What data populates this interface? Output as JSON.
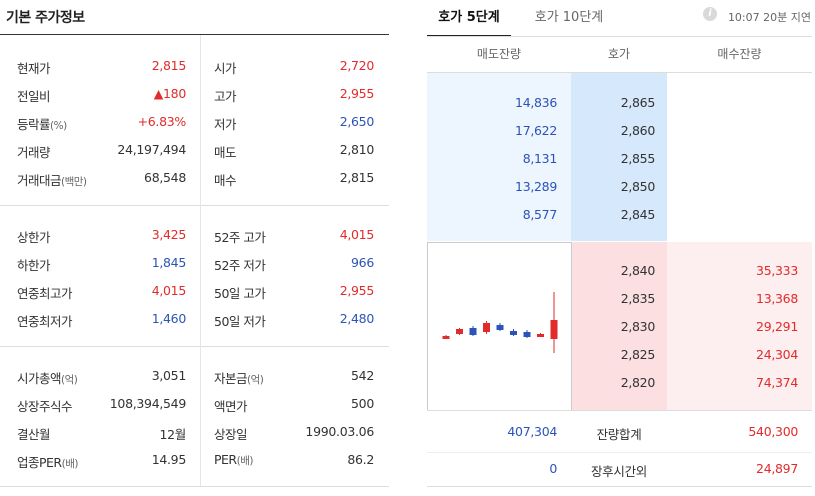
{
  "left_panel": {
    "title": "기본 주가정보",
    "rows": [
      {
        "l1": "현재가",
        "l1s": "",
        "v1": "2,815",
        "c1": "red",
        "l2": "시가",
        "l2s": "",
        "v2": "2,720",
        "c2": "red"
      },
      {
        "l1": "전일비",
        "l1s": "",
        "v1": "▲180",
        "c1": "red",
        "l2": "고가",
        "l2s": "",
        "v2": "2,955",
        "c2": "red"
      },
      {
        "l1": "등락률",
        "l1s": "(%)",
        "v1": "+6.83%",
        "c1": "red",
        "l2": "저가",
        "l2s": "",
        "v2": "2,650",
        "c2": "blue"
      },
      {
        "l1": "거래량",
        "l1s": "",
        "v1": "24,197,494",
        "c1": "blk",
        "l2": "매도",
        "l2s": "",
        "v2": "2,810",
        "c2": "blk"
      },
      {
        "l1": "거래대금",
        "l1s": "(백만)",
        "v1": "68,548",
        "c1": "blk",
        "l2": "매수",
        "l2s": "",
        "v2": "2,815",
        "c2": "blk"
      },
      {
        "l1": "상한가",
        "l1s": "",
        "v1": "3,425",
        "c1": "red",
        "l2": "52주 고가",
        "l2s": "",
        "v2": "4,015",
        "c2": "red"
      },
      {
        "l1": "하한가",
        "l1s": "",
        "v1": "1,845",
        "c1": "blue",
        "l2": "52주 저가",
        "l2s": "",
        "v2": "966",
        "c2": "blue"
      },
      {
        "l1": "연중최고가",
        "l1s": "",
        "v1": "4,015",
        "c1": "red",
        "l2": "50일 고가",
        "l2s": "",
        "v2": "2,955",
        "c2": "red"
      },
      {
        "l1": "연중최저가",
        "l1s": "",
        "v1": "1,460",
        "c1": "blue",
        "l2": "50일 저가",
        "l2s": "",
        "v2": "2,480",
        "c2": "blue"
      },
      {
        "l1": "시가총액",
        "l1s": "(억)",
        "v1": "3,051",
        "c1": "blk",
        "l2": "자본금",
        "l2s": "(억)",
        "v2": "542",
        "c2": "blk"
      },
      {
        "l1": "상장주식수",
        "l1s": "",
        "v1": "108,394,549",
        "c1": "blk",
        "l2": "액면가",
        "l2s": "",
        "v2": "500",
        "c2": "blk"
      },
      {
        "l1": "결산월",
        "l1s": "",
        "v1": "12월",
        "c1": "blk",
        "l2": "상장일",
        "l2s": "",
        "v2": "1990.03.06",
        "c2": "blk"
      },
      {
        "l1": "업종PER",
        "l1s": "(배)",
        "v1": "14.95",
        "c1": "blk",
        "l2": "PER",
        "l2s": "(배)",
        "v2": "86.2",
        "c2": "blk"
      }
    ]
  },
  "tabs": [
    {
      "label": "호가 5단계",
      "active": true
    },
    {
      "label": "호가 10단계",
      "active": false
    }
  ],
  "delay_text": "10:07 20분 지연",
  "info_icon": "info-icon",
  "orderbook": {
    "headers": [
      "매도잔량",
      "호가",
      "매수잔량"
    ],
    "asks": [
      {
        "volume": "14,836",
        "price": "2,865"
      },
      {
        "volume": "17,622",
        "price": "2,860"
      },
      {
        "volume": "8,131",
        "price": "2,855"
      },
      {
        "volume": "13,289",
        "price": "2,850"
      },
      {
        "volume": "8,577",
        "price": "2,845"
      }
    ],
    "bids": [
      {
        "price": "2,840",
        "volume": "35,333"
      },
      {
        "price": "2,835",
        "volume": "13,368"
      },
      {
        "price": "2,830",
        "volume": "29,291"
      },
      {
        "price": "2,825",
        "volume": "24,304"
      },
      {
        "price": "2,820",
        "volume": "74,374"
      }
    ],
    "total": {
      "ask": "407,304",
      "label": "잔량합계",
      "bid": "540,300"
    },
    "after_hours": {
      "ask": "0",
      "label": "장후시간외",
      "bid": "24,897"
    }
  },
  "colors": {
    "up": "#e22b2b",
    "down": "#2c53b8"
  },
  "mini_chart": {
    "candles": [
      {
        "open": 2730,
        "close": 2735,
        "high": 2740,
        "low": 2730,
        "dir": "up"
      },
      {
        "open": 2745,
        "close": 2770,
        "high": 2775,
        "low": 2740,
        "dir": "up"
      },
      {
        "open": 2775,
        "close": 2740,
        "high": 2785,
        "low": 2735,
        "dir": "down"
      },
      {
        "open": 2755,
        "close": 2800,
        "high": 2810,
        "low": 2745,
        "dir": "up"
      },
      {
        "open": 2790,
        "close": 2765,
        "high": 2800,
        "low": 2760,
        "dir": "down"
      },
      {
        "open": 2760,
        "close": 2740,
        "high": 2770,
        "low": 2735,
        "dir": "down"
      },
      {
        "open": 2755,
        "close": 2730,
        "high": 2765,
        "low": 2725,
        "dir": "down"
      },
      {
        "open": 2735,
        "close": 2745,
        "high": 2750,
        "low": 2730,
        "dir": "up"
      },
      {
        "open": 2720,
        "close": 2815,
        "high": 2955,
        "low": 2650,
        "dir": "up"
      }
    ]
  }
}
